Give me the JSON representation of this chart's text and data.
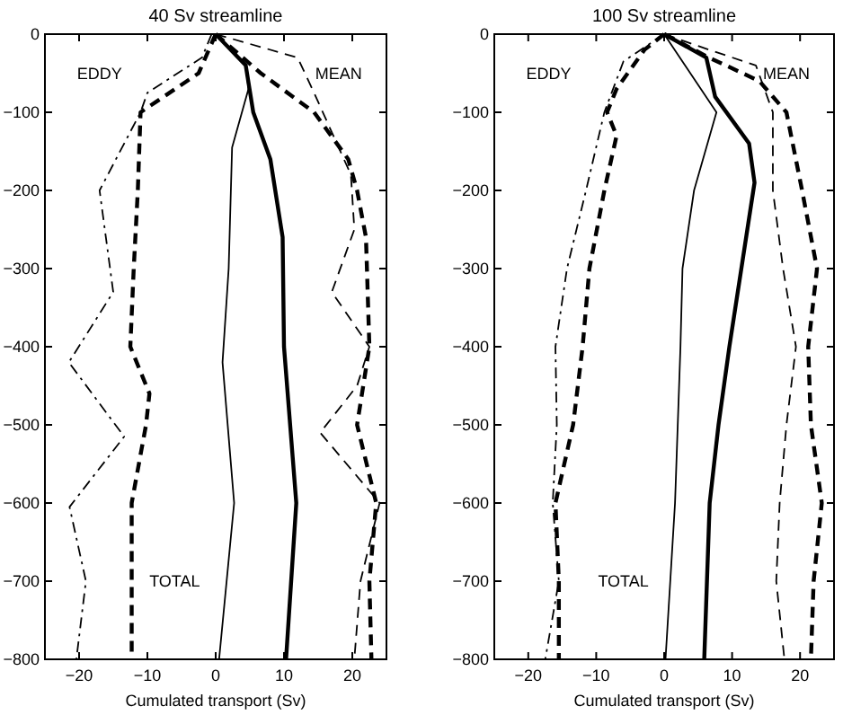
{
  "chart_data": [
    {
      "type": "line",
      "title": "40 Sv streamline",
      "xlabel": "Cumulated transport (Sv)",
      "xlim": [
        -25,
        25
      ],
      "ylim": [
        -800,
        0
      ],
      "xticks": [
        -20,
        -10,
        0,
        10,
        20
      ],
      "yticks": [
        -800,
        -700,
        -600,
        -500,
        -400,
        -300,
        -200,
        -100,
        0
      ],
      "grid": false,
      "annotations": [
        "EDDY",
        "MEAN",
        "TOTAL"
      ],
      "series": [
        {
          "color": "#000000",
          "line_style": "dashdot",
          "x": [
            -0.6,
            -2,
            -10,
            -11,
            -17,
            -15,
            -21.5,
            -13.4,
            -21.4,
            -19,
            -20.4
          ],
          "values": [
            0,
            -30,
            -75,
            -100,
            -200,
            -330,
            -420,
            -515,
            -605,
            -700,
            -800
          ]
        },
        {
          "color": "#000000",
          "line_style": "dashed",
          "x": [
            0,
            -2.5,
            -11,
            -11.4,
            -12,
            -12.5,
            -9.7,
            -10.2,
            -12.3,
            -12.3
          ],
          "values": [
            0,
            -50,
            -100,
            -200,
            -300,
            -400,
            -460,
            -500,
            -600,
            -800
          ]
        },
        {
          "color": "#000000",
          "line_style": "dashed",
          "x": [
            0,
            12,
            14.4,
            19.8,
            20.3,
            17,
            22.5,
            20.7,
            15.3,
            24,
            21.2,
            20.3
          ],
          "values": [
            0,
            -30,
            -75,
            -180,
            -250,
            -330,
            -400,
            -450,
            -510,
            -600,
            -700,
            -800
          ]
        },
        {
          "color": "#000000",
          "line_style": "dashed",
          "x": [
            0,
            6.6,
            14.4,
            19.4,
            20.7,
            22,
            22.5,
            20.7,
            23.5,
            22.5,
            22.8
          ],
          "values": [
            0,
            -50,
            -100,
            -160,
            -200,
            -260,
            -400,
            -500,
            -600,
            -700,
            -800
          ]
        },
        {
          "color": "#000000",
          "line_style": "solid",
          "x": [
            0,
            4.4,
            4.8,
            2.4,
            1.9,
            1,
            2.7,
            0.5
          ],
          "values": [
            0,
            -40,
            -70,
            -145,
            -300,
            -420,
            -600,
            -800
          ]
        },
        {
          "color": "#000000",
          "line_style": "solid",
          "x": [
            0,
            4.4,
            5.5,
            8,
            9.8,
            10,
            11.8,
            10.3
          ],
          "values": [
            0,
            -40,
            -100,
            -160,
            -260,
            -400,
            -600,
            -800
          ]
        }
      ]
    },
    {
      "type": "line",
      "title": "100 Sv streamline",
      "xlabel": "Cumulated transport (Sv)",
      "xlim": [
        -25,
        25
      ],
      "ylim": [
        -800,
        0
      ],
      "xticks": [
        -20,
        -10,
        0,
        10,
        20
      ],
      "yticks": [
        -800,
        -700,
        -600,
        -500,
        -400,
        -300,
        -200,
        -100,
        0
      ],
      "grid": false,
      "annotations": [
        "EDDY",
        "MEAN",
        "TOTAL"
      ],
      "series": [
        {
          "color": "#000000",
          "line_style": "dashdot",
          "x": [
            0,
            -6,
            -8.8,
            -11.5,
            -14.3,
            -16,
            -15.8,
            -16.4,
            -15.5,
            -17.5
          ],
          "values": [
            0,
            -35,
            -100,
            -200,
            -300,
            -400,
            -500,
            -600,
            -700,
            -800
          ]
        },
        {
          "color": "#000000",
          "line_style": "dashed",
          "x": [
            0,
            -2.9,
            -7,
            -8.4,
            -7,
            -8.8,
            -11,
            -12,
            -13.4,
            -16,
            -15.5,
            -15.5
          ],
          "values": [
            0,
            -20,
            -70,
            -100,
            -130,
            -200,
            -300,
            -400,
            -500,
            -600,
            -700,
            -800
          ]
        },
        {
          "color": "#000000",
          "line_style": "dashed",
          "x": [
            0,
            6.6,
            13.5,
            16,
            16,
            17.5,
            19.4,
            18,
            17,
            16.5,
            17.7
          ],
          "values": [
            0,
            -20,
            -40,
            -100,
            -200,
            -300,
            -400,
            -500,
            -600,
            -700,
            -800
          ]
        },
        {
          "color": "#000000",
          "line_style": "dashed",
          "x": [
            0,
            6.6,
            14,
            18,
            20.3,
            22.5,
            21.2,
            21.6,
            23.2,
            22,
            21.6
          ],
          "values": [
            0,
            -30,
            -60,
            -100,
            -200,
            -300,
            -400,
            -500,
            -600,
            -700,
            -800
          ]
        },
        {
          "color": "#000000",
          "line_style": "solid",
          "x": [
            0,
            7.7,
            4.4,
            2.7,
            2.4,
            1.6,
            0.2
          ],
          "values": [
            0,
            -100,
            -200,
            -300,
            -400,
            -600,
            -800
          ]
        },
        {
          "color": "#000000",
          "line_style": "solid",
          "x": [
            0,
            6.2,
            7.5,
            12.5,
            13.3,
            9.6,
            8,
            6.7,
            5.9
          ],
          "values": [
            0,
            -30,
            -80,
            -140,
            -190,
            -400,
            -500,
            -600,
            -800
          ]
        }
      ]
    }
  ]
}
